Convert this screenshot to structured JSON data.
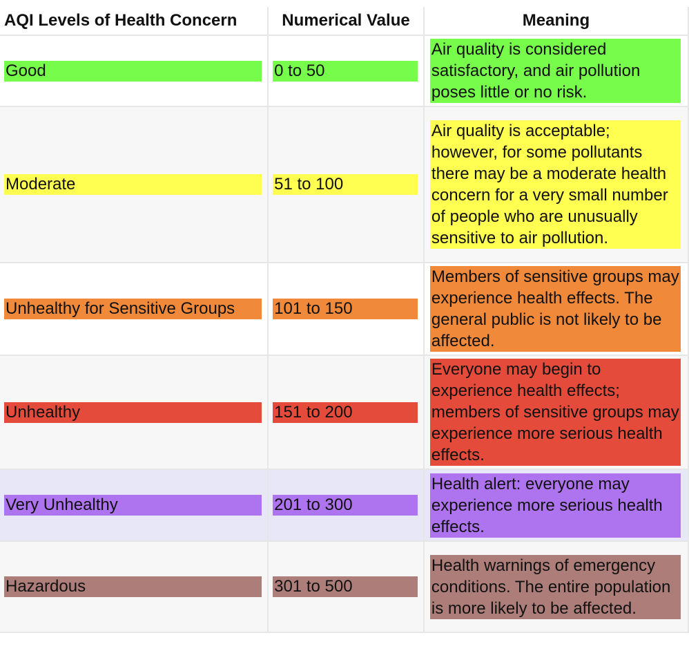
{
  "table": {
    "headers": {
      "level": "AQI Levels of Health Concern",
      "value": "Numerical Value",
      "meaning": "Meaning"
    },
    "rows": [
      {
        "level": "Good",
        "value": "0 to 50",
        "meaning": "Air quality is considered satisfactory, and air pollution poses little or no risk.",
        "color": "#77fc4c"
      },
      {
        "level": "Moderate",
        "value": "51 to 100",
        "meaning": "Air quality is acceptable; however, for some pollutants there may be a moderate health concern for a very small number of people who are unusually sensitive to air pollution.",
        "color": "#ffff52"
      },
      {
        "level": "Unhealthy for Sensitive Groups",
        "value": "101 to 150",
        "meaning": "Members of sensitive groups may experience health effects. The general public is not likely to be affected.",
        "color": "#f0893a"
      },
      {
        "level": "Unhealthy",
        "value": "151 to 200",
        "meaning": "Everyone may begin to experience health effects; members of sensitive groups may experience more serious health effects.",
        "color": "#e44b3a"
      },
      {
        "level": "Very Unhealthy",
        "value": "201 to 300",
        "meaning": "Health alert: everyone may experience more serious health effects.",
        "color": "#ae74ef"
      },
      {
        "level": "Hazardous",
        "value": "301 to 500",
        "meaning": "Health warnings of emergency conditions. The entire population is more likely to be affected.",
        "color": "#ad7e79"
      }
    ]
  }
}
